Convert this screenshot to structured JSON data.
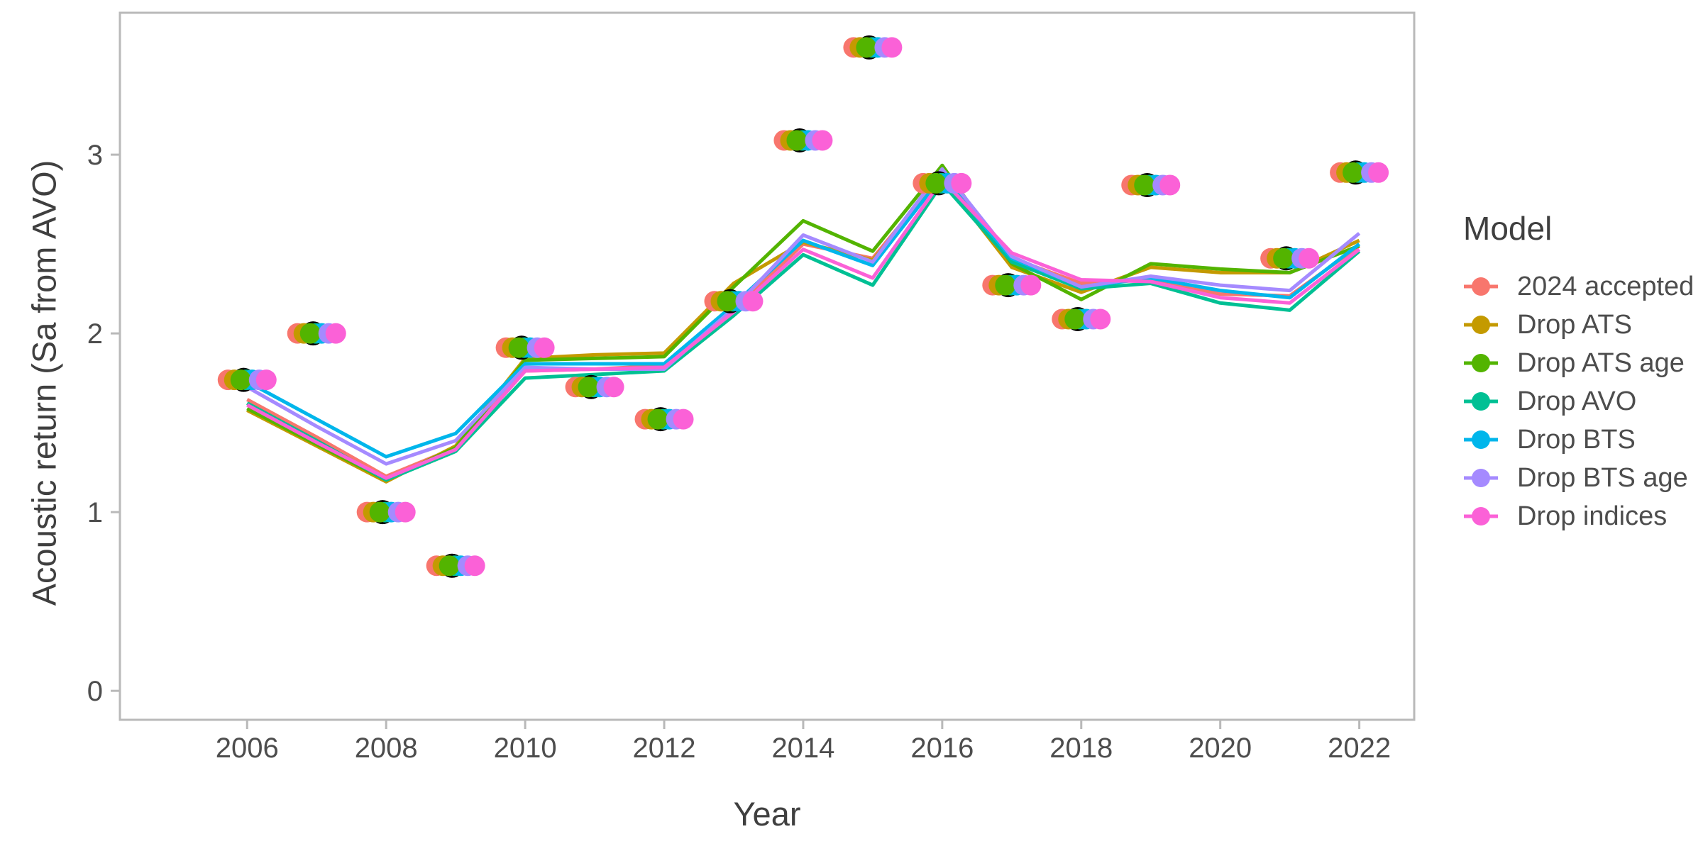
{
  "chart": {
    "xlabel": "Year",
    "ylabel": "Acoustic return (Sa from AVO)",
    "legend_title": "Model",
    "background_color": "#ffffff",
    "panel_border_color": "#b9b9b9",
    "tick_color": "#b9b9b9",
    "axis_text_color": "#4d4d4d",
    "title_text_color": "#3f3f3f",
    "observed_point_color": "#000000"
  },
  "chart_data": {
    "type": "line",
    "title": "",
    "xlabel": "Year",
    "ylabel": "Acoustic return (Sa from AVO)",
    "legend_title": "Model",
    "legend_position": "right",
    "grid": false,
    "x": [
      2006,
      2007,
      2008,
      2009,
      2010,
      2011,
      2012,
      2013,
      2014,
      2015,
      2016,
      2017,
      2018,
      2019,
      2020,
      2021,
      2022
    ],
    "x_ticks": [
      2006,
      2008,
      2010,
      2012,
      2014,
      2016,
      2018,
      2020,
      2022
    ],
    "y_ticks": [
      0,
      1,
      2,
      3
    ],
    "xlim": [
      2004.17,
      2022.79
    ],
    "ylim": [
      -0.162,
      3.794
    ],
    "series": [
      {
        "name": "2024 accepted",
        "color": "#F8766D",
        "values": [
          1.63,
          1.42,
          1.2,
          1.36,
          1.79,
          1.8,
          1.82,
          2.13,
          2.5,
          2.42,
          2.89,
          2.42,
          2.28,
          2.3,
          2.22,
          2.21,
          2.49
        ]
      },
      {
        "name": "Drop ATS",
        "color": "#C49A00",
        "values": [
          1.57,
          1.37,
          1.17,
          1.37,
          1.86,
          1.88,
          1.89,
          2.28,
          2.51,
          2.41,
          2.87,
          2.37,
          2.23,
          2.37,
          2.34,
          2.34,
          2.52
        ]
      },
      {
        "name": "Drop ATS age",
        "color": "#53B400",
        "values": [
          1.58,
          1.38,
          1.18,
          1.36,
          1.85,
          1.86,
          1.87,
          2.26,
          2.63,
          2.46,
          2.94,
          2.39,
          2.19,
          2.39,
          2.36,
          2.34,
          2.49
        ]
      },
      {
        "name": "Drop AVO",
        "color": "#00C094",
        "values": [
          1.61,
          1.4,
          1.18,
          1.34,
          1.75,
          1.77,
          1.79,
          2.1,
          2.44,
          2.27,
          2.84,
          2.4,
          2.25,
          2.28,
          2.17,
          2.13,
          2.46
        ]
      },
      {
        "name": "Drop BTS",
        "color": "#00B6EB",
        "values": [
          1.73,
          1.52,
          1.31,
          1.44,
          1.83,
          1.83,
          1.83,
          2.16,
          2.52,
          2.38,
          2.88,
          2.42,
          2.26,
          2.31,
          2.24,
          2.2,
          2.5
        ]
      },
      {
        "name": "Drop BTS age",
        "color": "#A58AFF",
        "values": [
          1.7,
          1.48,
          1.27,
          1.4,
          1.81,
          1.8,
          1.8,
          2.14,
          2.55,
          2.4,
          2.92,
          2.43,
          2.26,
          2.32,
          2.27,
          2.24,
          2.56
        ]
      },
      {
        "name": "Drop indices",
        "color": "#FB61D7",
        "values": [
          1.6,
          1.39,
          1.19,
          1.35,
          1.79,
          1.8,
          1.81,
          2.12,
          2.47,
          2.31,
          2.86,
          2.45,
          2.3,
          2.29,
          2.2,
          2.17,
          2.47
        ]
      }
    ],
    "observed_points": {
      "years": [
        2006,
        2007,
        2008,
        2009,
        2010,
        2011,
        2012,
        2013,
        2014,
        2015,
        2016,
        2017,
        2018,
        2019,
        2021,
        2022
      ],
      "values": [
        1.74,
        2.0,
        1.0,
        0.7,
        1.92,
        1.7,
        1.52,
        2.18,
        3.08,
        3.6,
        2.84,
        2.27,
        2.08,
        2.83,
        2.42,
        2.9
      ],
      "outline_color": "#000000"
    }
  }
}
